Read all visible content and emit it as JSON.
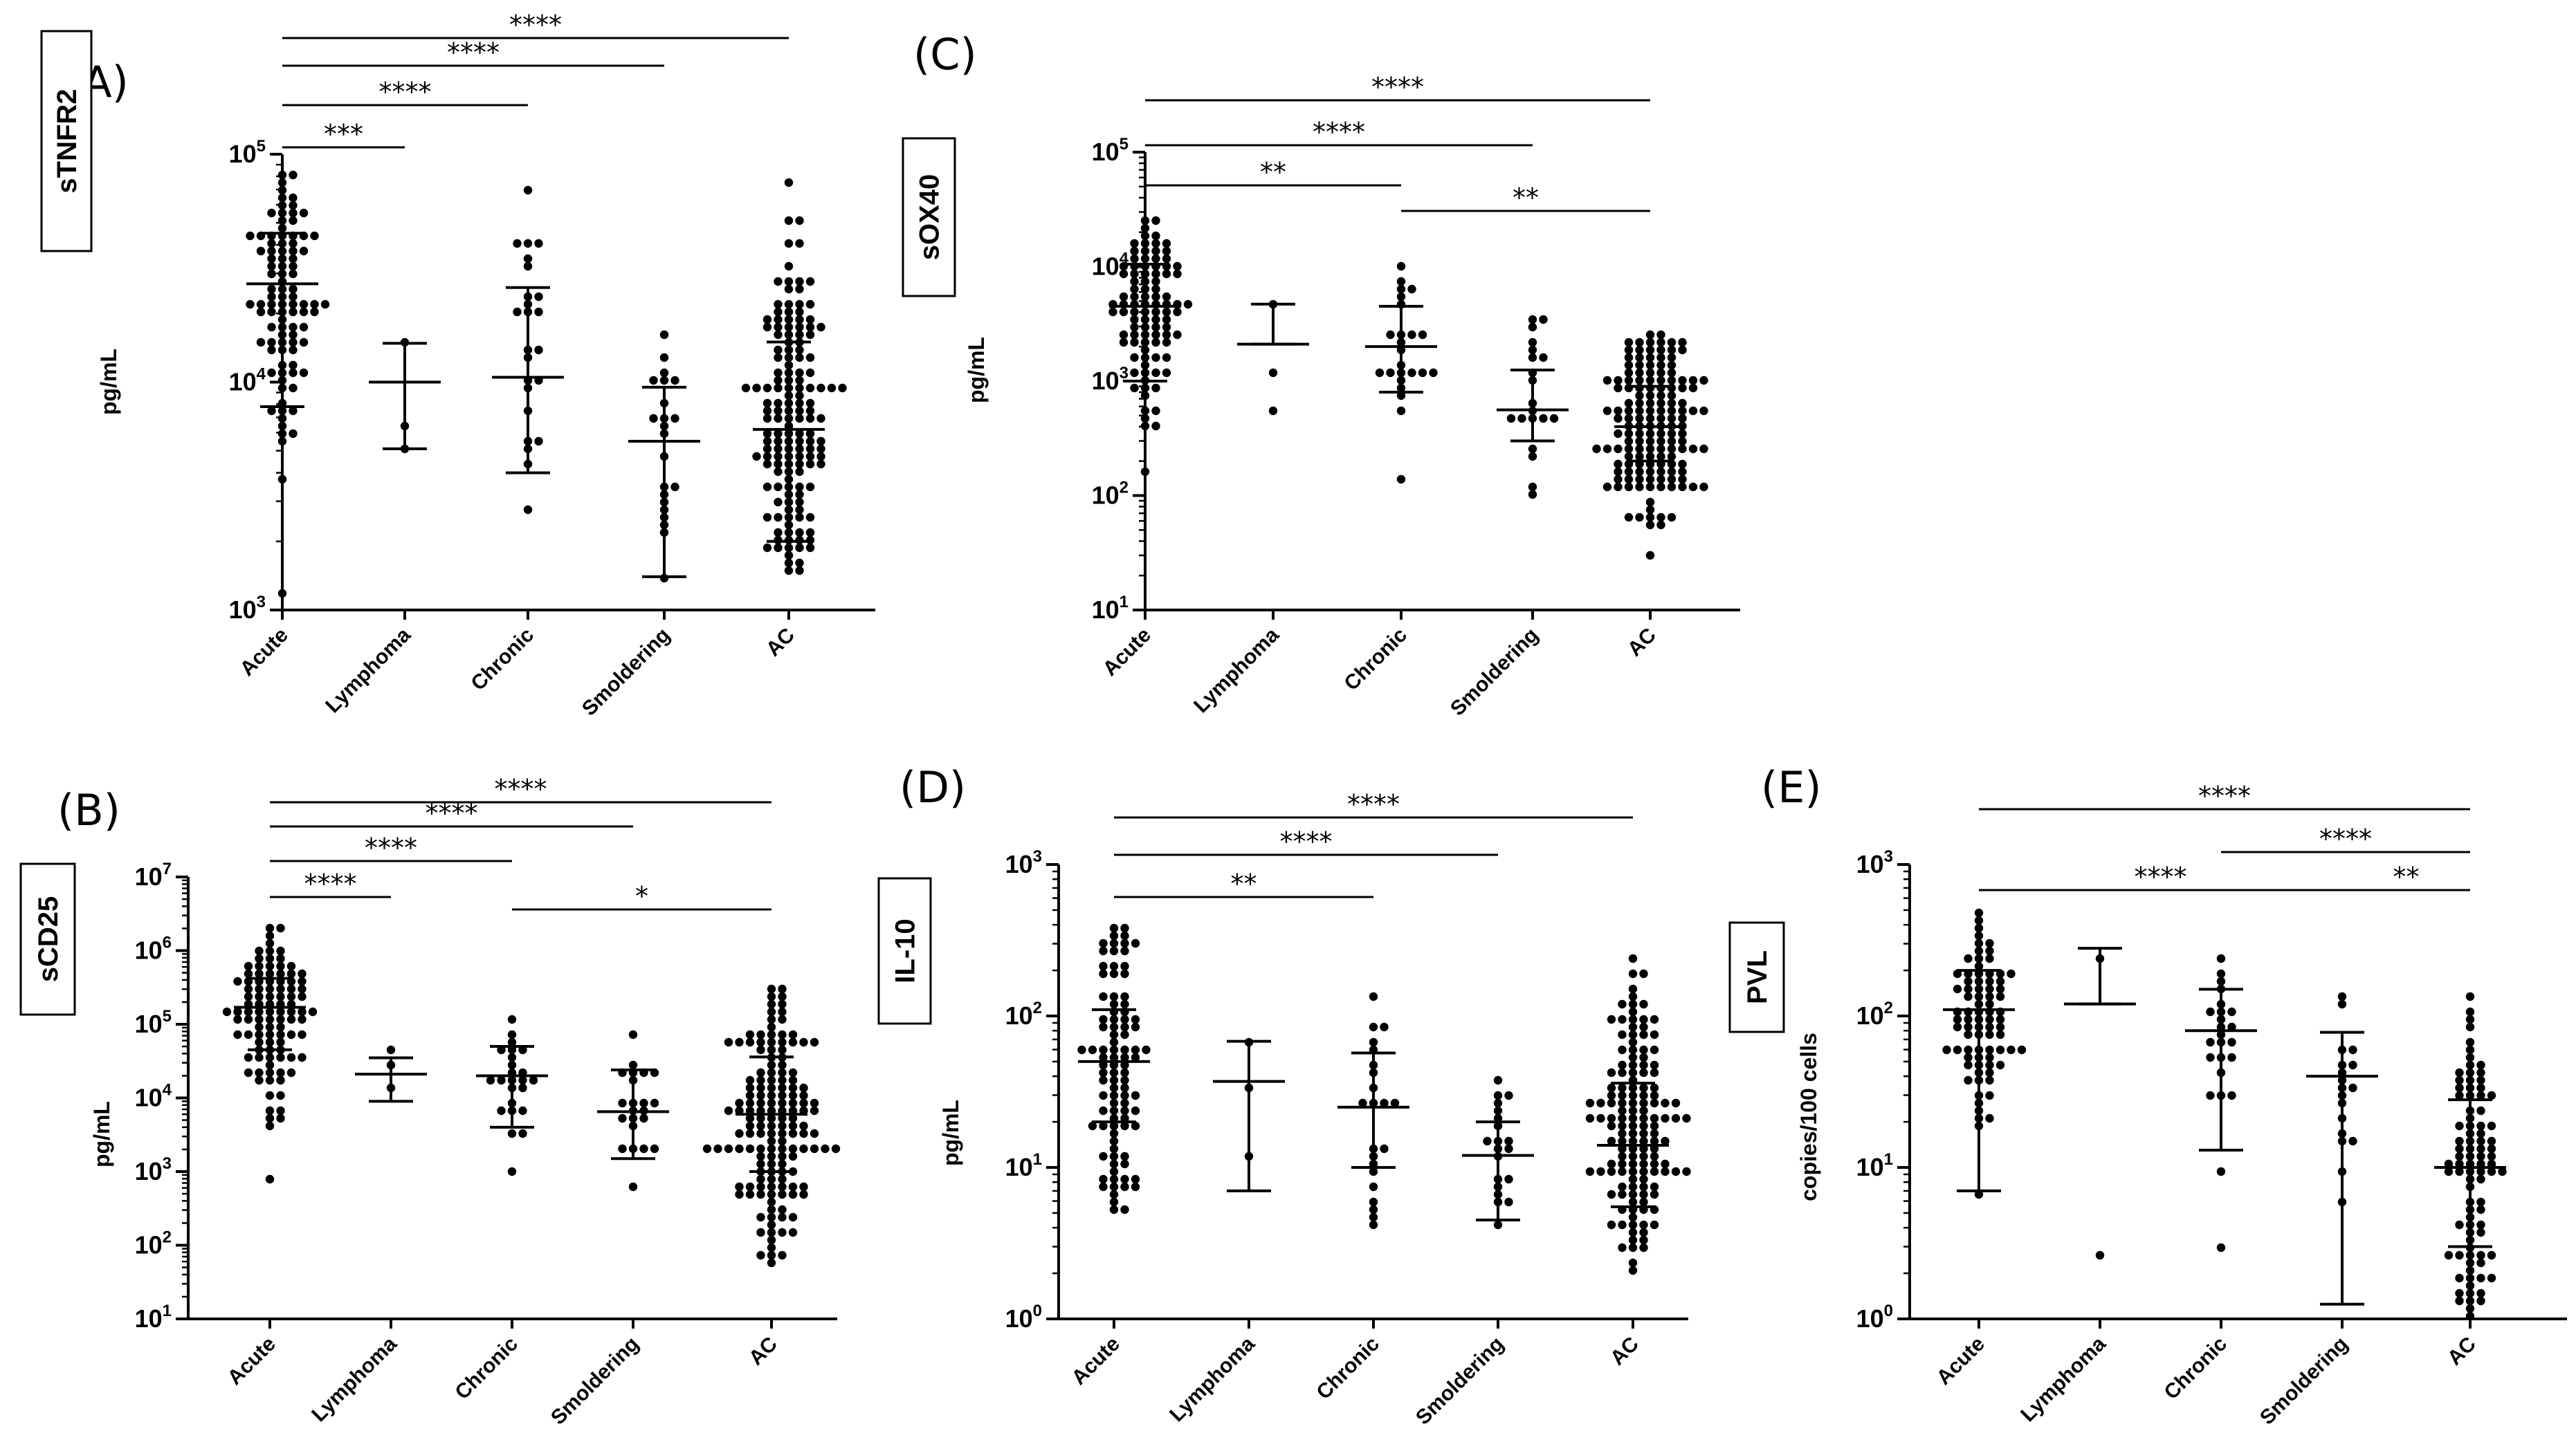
{
  "figure": {
    "categories": [
      "Acute",
      "Lymphoma",
      "Chronic",
      "Smoldering",
      "AC"
    ]
  },
  "chart_data": [
    {
      "panel": "(A)",
      "type": "scatter",
      "ylabel": "sTNFR2",
      "yunit": "pg/mL",
      "yscale": "log",
      "ylim": [
        1000,
        100000
      ],
      "yticks": [
        1000,
        10000,
        100000
      ],
      "categories": [
        "Acute",
        "Lymphoma",
        "Chronic",
        "Smoldering",
        "AC"
      ],
      "groups": [
        {
          "name": "Acute",
          "n": 95,
          "range": [
            1200,
            80000
          ],
          "center": 27000,
          "low": 7800,
          "high": 45000
        },
        {
          "name": "Lymphoma",
          "n": 3,
          "range": [
            5000,
            15000
          ],
          "center": 10000,
          "low": 5100,
          "high": 14800
        },
        {
          "name": "Chronic",
          "n": 24,
          "range": [
            2800,
            72000
          ],
          "center": 10500,
          "low": 4000,
          "high": 26000
        },
        {
          "name": "Smoldering",
          "n": 22,
          "range": [
            1400,
            16000
          ],
          "center": 5500,
          "low": 1400,
          "high": 9500
        },
        {
          "name": "AC",
          "n": 150,
          "range": [
            1450,
            75000
          ],
          "center": 6200,
          "low": 2000,
          "high": 15000
        }
      ],
      "comparisons": [
        {
          "from": "Acute",
          "to": "Lymphoma",
          "label": "***"
        },
        {
          "from": "Acute",
          "to": "Chronic",
          "label": "****"
        },
        {
          "from": "Acute",
          "to": "Smoldering",
          "label": "****"
        },
        {
          "from": "Acute",
          "to": "AC",
          "label": "****"
        }
      ]
    },
    {
      "panel": "(B)",
      "type": "scatter",
      "ylabel": "sCD25",
      "yunit": "pg/mL",
      "yscale": "log",
      "ylim": [
        10,
        10000000
      ],
      "yticks": [
        10,
        100,
        1000,
        10000,
        100000,
        1000000,
        10000000
      ],
      "categories": [
        "Acute",
        "Lymphoma",
        "Chronic",
        "Smoldering",
        "AC"
      ],
      "groups": [
        {
          "name": "Acute",
          "n": 100,
          "range": [
            750,
            2000000
          ],
          "center": 170000,
          "low": 45000,
          "high": 420000
        },
        {
          "name": "Lymphoma",
          "n": 3,
          "range": [
            15000,
            40000
          ],
          "center": 21000,
          "low": 9000,
          "high": 35000
        },
        {
          "name": "Chronic",
          "n": 24,
          "range": [
            1000,
            110000
          ],
          "center": 20000,
          "low": 4000,
          "high": 50000
        },
        {
          "name": "Smoldering",
          "n": 22,
          "range": [
            600,
            80000
          ],
          "center": 6500,
          "low": 1500,
          "high": 24000
        },
        {
          "name": "AC",
          "n": 150,
          "range": [
            60,
            330000
          ],
          "center": 6000,
          "low": 1000,
          "high": 36000
        }
      ],
      "comparisons": [
        {
          "from": "Acute",
          "to": "Lymphoma",
          "label": "****"
        },
        {
          "from": "Acute",
          "to": "Chronic",
          "label": "****"
        },
        {
          "from": "Acute",
          "to": "Smoldering",
          "label": "****"
        },
        {
          "from": "Acute",
          "to": "AC",
          "label": "****"
        },
        {
          "from": "Chronic",
          "to": "AC",
          "label": "*"
        }
      ]
    },
    {
      "panel": "(C)",
      "type": "scatter",
      "ylabel": "sOX40",
      "yunit": "pg/mL",
      "yscale": "log",
      "ylim": [
        10,
        100000
      ],
      "yticks": [
        10,
        100,
        1000,
        10000,
        100000
      ],
      "categories": [
        "Acute",
        "Lymphoma",
        "Chronic",
        "Smoldering",
        "AC"
      ],
      "groups": [
        {
          "name": "Acute",
          "n": 95,
          "range": [
            150,
            25000
          ],
          "center": 4500,
          "low": 1000,
          "high": 10500
        },
        {
          "name": "Lymphoma",
          "n": 3,
          "range": [
            550,
            5000
          ],
          "center": 2100,
          "low": 2100,
          "high": 4700
        },
        {
          "name": "Chronic",
          "n": 24,
          "range": [
            130,
            10000
          ],
          "center": 2000,
          "low": 800,
          "high": 4500
        },
        {
          "name": "Smoldering",
          "n": 20,
          "range": [
            110,
            3300
          ],
          "center": 560,
          "low": 300,
          "high": 1250
        },
        {
          "name": "AC",
          "n": 150,
          "range": [
            30,
            2400
          ],
          "center": 400,
          "low": 200,
          "high": 900
        }
      ],
      "comparisons": [
        {
          "from": "Acute",
          "to": "Chronic",
          "label": "**"
        },
        {
          "from": "Acute",
          "to": "Smoldering",
          "label": "****"
        },
        {
          "from": "Acute",
          "to": "AC",
          "label": "****"
        },
        {
          "from": "Chronic",
          "to": "AC",
          "label": "**"
        }
      ]
    },
    {
      "panel": "(D)",
      "type": "scatter",
      "ylabel": "IL-10",
      "yunit": "pg/mL",
      "yscale": "log",
      "ylim": [
        1,
        1000
      ],
      "yticks": [
        1,
        10,
        100,
        1000
      ],
      "categories": [
        "Acute",
        "Lymphoma",
        "Chronic",
        "Smoldering",
        "AC"
      ],
      "groups": [
        {
          "name": "Acute",
          "n": 95,
          "range": [
            5,
            370
          ],
          "center": 50,
          "low": 20,
          "high": 110
        },
        {
          "name": "Lymphoma",
          "n": 3,
          "range": [
            12,
            70
          ],
          "center": 37,
          "low": 7,
          "high": 68
        },
        {
          "name": "Chronic",
          "n": 22,
          "range": [
            4,
            130
          ],
          "center": 25,
          "low": 10,
          "high": 57
        },
        {
          "name": "Smoldering",
          "n": 20,
          "range": [
            4,
            38
          ],
          "center": 12,
          "low": 4.5,
          "high": 20
        },
        {
          "name": "AC",
          "n": 140,
          "range": [
            2,
            230
          ],
          "center": 14,
          "low": 5.5,
          "high": 36
        }
      ],
      "comparisons": [
        {
          "from": "Acute",
          "to": "Chronic",
          "label": "**"
        },
        {
          "from": "Acute",
          "to": "Smoldering",
          "label": "****"
        },
        {
          "from": "Acute",
          "to": "AC",
          "label": "****"
        }
      ]
    },
    {
      "panel": "(E)",
      "type": "scatter",
      "ylabel": "PVL",
      "yunit": "copies/100 cells",
      "yscale": "log",
      "ylim": [
        1,
        1000
      ],
      "yticks": [
        1,
        10,
        100,
        1000
      ],
      "categories": [
        "Acute",
        "Lymphoma",
        "Chronic",
        "Smoldering",
        "AC"
      ],
      "groups": [
        {
          "name": "Acute",
          "n": 80,
          "range": [
            7,
            500
          ],
          "center": 110,
          "low": 7,
          "high": 200
        },
        {
          "name": "Lymphoma",
          "n": 2,
          "range": [
            2.5,
            250
          ],
          "center": 120,
          "low": 120,
          "high": 280
        },
        {
          "name": "Chronic",
          "n": 24,
          "range": [
            3,
            230
          ],
          "center": 80,
          "low": 13,
          "high": 150
        },
        {
          "name": "Smoldering",
          "n": 18,
          "range": [
            6,
            140
          ],
          "center": 40,
          "low": 1.25,
          "high": 78
        },
        {
          "name": "AC",
          "n": 90,
          "range": [
            1.1,
            130
          ],
          "center": 10,
          "low": 3,
          "high": 28
        }
      ],
      "comparisons": [
        {
          "from": "Acute",
          "to": "Smoldering",
          "label": "****"
        },
        {
          "from": "Smoldering",
          "to": "AC",
          "label": "**"
        },
        {
          "from": "Chronic",
          "to": "AC",
          "label": "****"
        },
        {
          "from": "Acute",
          "to": "AC",
          "label": "****"
        }
      ]
    }
  ]
}
